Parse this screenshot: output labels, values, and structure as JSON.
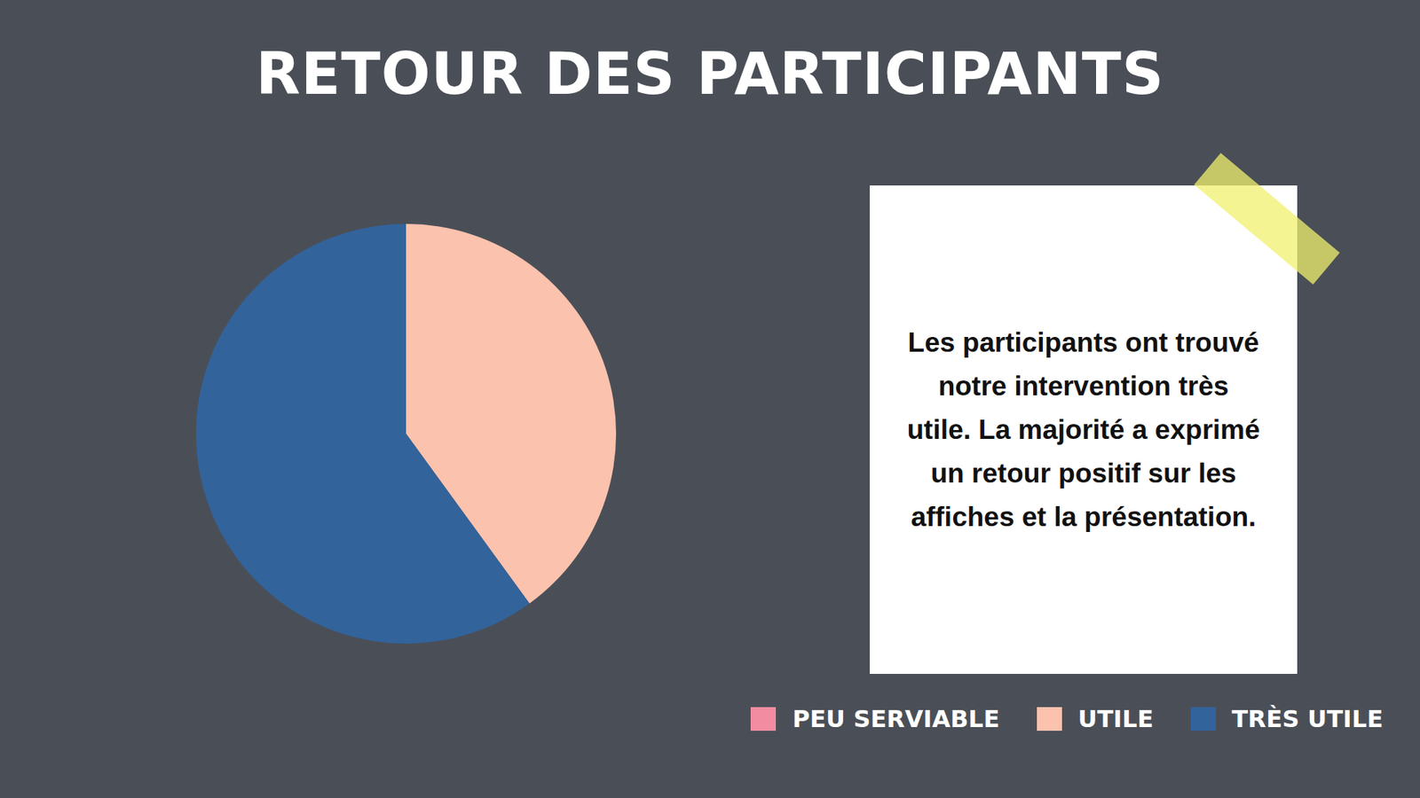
{
  "chart_data": {
    "type": "pie",
    "title": "RETOUR DES PARTICIPANTS",
    "categories": [
      "PEU SERVIABLE",
      "UTILE",
      "TRÈS UTILE"
    ],
    "values": [
      0,
      40,
      60
    ],
    "colors": [
      "#f28ca0",
      "#fbc2ad",
      "#32639b"
    ],
    "legend": "bottom-right",
    "annotation": "Les participants ont trouvé notre intervention très utile. La majorité a exprimé un retour positif sur les affiches et la présentation."
  }
}
